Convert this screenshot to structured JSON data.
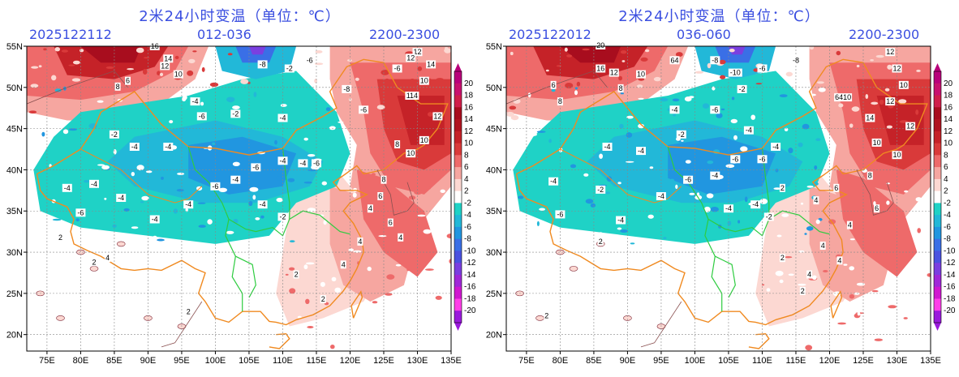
{
  "panels": [
    {
      "title": "2米24小时变温（单位：℃）",
      "init_time": "2025122112",
      "forecast_range": "012-036",
      "valid_hours": "2200-2300",
      "labels": [
        {
          "t": "14",
          "lon": 93,
          "lat": 53.2
        },
        {
          "t": "12",
          "lon": 92.5,
          "lat": 52.3
        },
        {
          "t": "10",
          "lon": 94.5,
          "lat": 51.3
        },
        {
          "t": "6",
          "lon": 87,
          "lat": 50.5
        },
        {
          "t": "8",
          "lon": 85.5,
          "lat": 49.8
        },
        {
          "t": "16",
          "lon": 91,
          "lat": 54.7
        },
        {
          "t": "-8",
          "lon": 107,
          "lat": 52.5
        },
        {
          "t": "-2",
          "lon": 111,
          "lat": 52
        },
        {
          "t": "-6",
          "lon": 114,
          "lat": 53
        },
        {
          "t": "12",
          "lon": 130,
          "lat": 54
        },
        {
          "t": "14",
          "lon": 132,
          "lat": 52.5
        },
        {
          "t": "12",
          "lon": 129,
          "lat": 53.3
        },
        {
          "t": "10",
          "lon": 131,
          "lat": 50.5
        },
        {
          "t": "114",
          "lon": 129.2,
          "lat": 48.7
        },
        {
          "t": "12",
          "lon": 133,
          "lat": 46.2
        },
        {
          "t": "10",
          "lon": 131,
          "lat": 43.3
        },
        {
          "t": "10",
          "lon": 129,
          "lat": 41.7
        },
        {
          "t": "8",
          "lon": 127,
          "lat": 42.8
        },
        {
          "t": "-6",
          "lon": 127,
          "lat": 52
        },
        {
          "t": "-8",
          "lon": 119.5,
          "lat": 49.5
        },
        {
          "t": "-6",
          "lon": 122,
          "lat": 47
        },
        {
          "t": "-2",
          "lon": 103,
          "lat": 46.5
        },
        {
          "t": "-4",
          "lon": 97,
          "lat": 48
        },
        {
          "t": "-6",
          "lon": 98,
          "lat": 46.2
        },
        {
          "t": "-4",
          "lon": 110,
          "lat": 46
        },
        {
          "t": "-2",
          "lon": 85,
          "lat": 44
        },
        {
          "t": "-4",
          "lon": 88,
          "lat": 42.5
        },
        {
          "t": "-4",
          "lon": 93,
          "lat": 42.5
        },
        {
          "t": "-6",
          "lon": 106,
          "lat": 40
        },
        {
          "t": "-4",
          "lon": 110,
          "lat": 40.8
        },
        {
          "t": "-4",
          "lon": 113,
          "lat": 40.5
        },
        {
          "t": "-6",
          "lon": 115,
          "lat": 40.5
        },
        {
          "t": "-4",
          "lon": 103,
          "lat": 38.5
        },
        {
          "t": "-6",
          "lon": 100,
          "lat": 37.7
        },
        {
          "t": "-4",
          "lon": 82,
          "lat": 38
        },
        {
          "t": "-4",
          "lon": 78,
          "lat": 37.5
        },
        {
          "t": "-4",
          "lon": 86,
          "lat": 36.3
        },
        {
          "t": "-4",
          "lon": 96,
          "lat": 35.5
        },
        {
          "t": "-6",
          "lon": 80,
          "lat": 34.5
        },
        {
          "t": "-4",
          "lon": 91,
          "lat": 33.7
        },
        {
          "t": "-4",
          "lon": 107,
          "lat": 35.5
        },
        {
          "t": "-2",
          "lon": 110,
          "lat": 34
        },
        {
          "t": "4",
          "lon": 123,
          "lat": 35
        },
        {
          "t": "6",
          "lon": 124.5,
          "lat": 36.5
        },
        {
          "t": "8",
          "lon": 125,
          "lat": 38.5
        },
        {
          "t": "6",
          "lon": 126,
          "lat": 33.3
        },
        {
          "t": "4",
          "lon": 121.5,
          "lat": 31
        },
        {
          "t": "4",
          "lon": 127.5,
          "lat": 31.5
        },
        {
          "t": "2",
          "lon": 112,
          "lat": 27
        },
        {
          "t": "4",
          "lon": 119,
          "lat": 28.2
        },
        {
          "t": "2",
          "lon": 116,
          "lat": 24
        },
        {
          "t": "2",
          "lon": 77,
          "lat": 31.5
        },
        {
          "t": "2",
          "lon": 82,
          "lat": 28.5
        },
        {
          "t": "2",
          "lon": 96,
          "lat": 22.5
        },
        {
          "t": "4",
          "lon": 84,
          "lat": 29
        }
      ]
    },
    {
      "title": "2米24小时变温（单位：℃）",
      "init_time": "2025122012",
      "forecast_range": "036-060",
      "valid_hours": "2200-2300",
      "labels": [
        {
          "t": "20",
          "lon": 86,
          "lat": 54.8
        },
        {
          "t": "16",
          "lon": 86,
          "lat": 52
        },
        {
          "t": "12",
          "lon": 88,
          "lat": 51.5
        },
        {
          "t": "10",
          "lon": 92,
          "lat": 51.3
        },
        {
          "t": "8",
          "lon": 89,
          "lat": 49.6
        },
        {
          "t": "8",
          "lon": 80,
          "lat": 48
        },
        {
          "t": "6",
          "lon": 79,
          "lat": 50
        },
        {
          "t": "64",
          "lon": 97,
          "lat": 53
        },
        {
          "t": "-8",
          "lon": 103,
          "lat": 53
        },
        {
          "t": "-10",
          "lon": 106,
          "lat": 51.5
        },
        {
          "t": "-2",
          "lon": 107,
          "lat": 49.5
        },
        {
          "t": "-6",
          "lon": 110,
          "lat": 52
        },
        {
          "t": "-8",
          "lon": 115,
          "lat": 53
        },
        {
          "t": "12",
          "lon": 129,
          "lat": 54
        },
        {
          "t": "12",
          "lon": 130,
          "lat": 52
        },
        {
          "t": "10",
          "lon": 131,
          "lat": 50
        },
        {
          "t": "12",
          "lon": 129,
          "lat": 48
        },
        {
          "t": "6410",
          "lon": 122,
          "lat": 48.5
        },
        {
          "t": "14",
          "lon": 126,
          "lat": 46
        },
        {
          "t": "12",
          "lon": 132,
          "lat": 45
        },
        {
          "t": "10",
          "lon": 127,
          "lat": 43
        },
        {
          "t": "10",
          "lon": 130,
          "lat": 41.5
        },
        {
          "t": "-6",
          "lon": 103,
          "lat": 47
        },
        {
          "t": "-4",
          "lon": 97,
          "lat": 47
        },
        {
          "t": "-4",
          "lon": 108,
          "lat": 44.5
        },
        {
          "t": "-6",
          "lon": 106,
          "lat": 41
        },
        {
          "t": "-6",
          "lon": 110,
          "lat": 41
        },
        {
          "t": "-4",
          "lon": 112,
          "lat": 42.5
        },
        {
          "t": "-2",
          "lon": 98,
          "lat": 44
        },
        {
          "t": "-4",
          "lon": 87,
          "lat": 42.5
        },
        {
          "t": "-4",
          "lon": 92,
          "lat": 42
        },
        {
          "t": "-6",
          "lon": 99,
          "lat": 38.5
        },
        {
          "t": "-4",
          "lon": 103,
          "lat": 39
        },
        {
          "t": "-4",
          "lon": 79,
          "lat": 38.3
        },
        {
          "t": "-2",
          "lon": 86,
          "lat": 37.3
        },
        {
          "t": "-4",
          "lon": 95,
          "lat": 36.5
        },
        {
          "t": "-6",
          "lon": 80,
          "lat": 34.3
        },
        {
          "t": "-4",
          "lon": 89,
          "lat": 33.6
        },
        {
          "t": "-4",
          "lon": 105,
          "lat": 35
        },
        {
          "t": "-4",
          "lon": 109,
          "lat": 35.5
        },
        {
          "t": "-2",
          "lon": 111,
          "lat": 34
        },
        {
          "t": "2",
          "lon": 113,
          "lat": 37.5
        },
        {
          "t": "4",
          "lon": 118,
          "lat": 36
        },
        {
          "t": "6",
          "lon": 121,
          "lat": 37.5
        },
        {
          "t": "6",
          "lon": 127,
          "lat": 35
        },
        {
          "t": "8",
          "lon": 126,
          "lat": 39
        },
        {
          "t": "4",
          "lon": 123,
          "lat": 33
        },
        {
          "t": "4",
          "lon": 119,
          "lat": 30.5
        },
        {
          "t": "4",
          "lon": 121.5,
          "lat": 28.7
        },
        {
          "t": "2",
          "lon": 113,
          "lat": 29
        },
        {
          "t": "2",
          "lon": 116,
          "lat": 25
        },
        {
          "t": "2",
          "lon": 86,
          "lat": 31
        },
        {
          "t": "2",
          "lon": 78,
          "lat": 22
        },
        {
          "t": "4",
          "lon": 117,
          "lat": 27
        }
      ]
    }
  ],
  "colorbar": {
    "levels": [
      "20",
      "18",
      "16",
      "14",
      "12",
      "10",
      "8",
      "6",
      "4",
      "2",
      "-2",
      "-4",
      "-6",
      "-8",
      "-10",
      "-12",
      "-14",
      "-16",
      "-18",
      "-20"
    ],
    "colors": [
      "#b8007a",
      "#c8106e",
      "#d01e4a",
      "#a80d1e",
      "#b01420",
      "#c52228",
      "#d93a3a",
      "#ee6a6a",
      "#f6a6a0",
      "#fcd8d2",
      "#ffffff",
      "#1fd2c6",
      "#22b8d8",
      "#2196e0",
      "#3a6fe6",
      "#4a52e0",
      "#7a3fe0",
      "#a028d8",
      "#d018d0",
      "#ff3fe8",
      "#9a1adc"
    ]
  },
  "axes": {
    "lat_labels": [
      "55N",
      "50N",
      "45N",
      "40N",
      "35N",
      "30N",
      "25N",
      "20N"
    ],
    "lon_labels": [
      "75E",
      "80E",
      "85E",
      "90E",
      "95E",
      "100E",
      "105E",
      "110E",
      "115E",
      "120E",
      "125E",
      "130E",
      "135E"
    ]
  }
}
